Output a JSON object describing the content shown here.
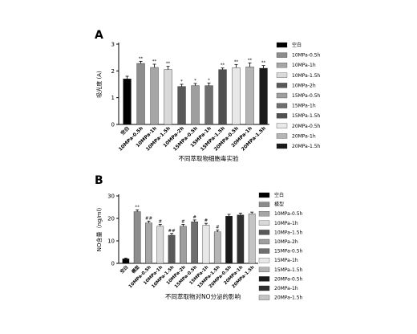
{
  "chart_data": [
    {
      "panel_label": "A",
      "type": "bar",
      "title": "不同萃取物细胞毒实验",
      "ylabel": "吸光度 (A)",
      "ylim": [
        0,
        3
      ],
      "yticks": [
        0,
        1,
        2,
        3
      ],
      "grid": false,
      "legend_position": "right",
      "categories": [
        "空白",
        "10MPa-0.5h",
        "10MPa-1h",
        "10MPa-1.5h",
        "10MPa-2h",
        "15MPa-0.5h",
        "15MPa-1h",
        "15MPa-1.5h",
        "20MPa-0.5h",
        "20MPa-1h",
        "20MPa-1.5h"
      ],
      "values": [
        1.7,
        2.28,
        2.13,
        2.05,
        1.42,
        1.45,
        1.45,
        2.05,
        2.12,
        2.15,
        2.1
      ],
      "errors": [
        0.1,
        0.08,
        0.12,
        0.12,
        0.08,
        0.08,
        0.1,
        0.06,
        0.12,
        0.15,
        0.1
      ],
      "annotations": [
        "",
        "**",
        "**",
        "**",
        "*",
        "*",
        "*",
        "**",
        "**",
        "**",
        "**"
      ],
      "series": [
        {
          "name": "空白",
          "values": [
            1.7,
            null,
            null,
            null,
            null,
            null,
            null,
            null,
            null,
            null,
            null
          ],
          "color": "#000000"
        },
        {
          "name": "10MPa-0.5h",
          "values": [
            null,
            2.28,
            null,
            null,
            null,
            null,
            null,
            null,
            null,
            null,
            null
          ],
          "color": "#8c8c8c"
        },
        {
          "name": "10MPa-1h",
          "values": [
            null,
            null,
            2.13,
            null,
            null,
            null,
            null,
            null,
            null,
            null,
            null
          ],
          "color": "#a6a6a6"
        },
        {
          "name": "10MPa-1.5h",
          "values": [
            null,
            null,
            null,
            2.05,
            null,
            null,
            null,
            null,
            null,
            null,
            null
          ],
          "color": "#d9d9d9"
        },
        {
          "name": "10MPa-2h",
          "values": [
            null,
            null,
            null,
            null,
            1.42,
            null,
            null,
            null,
            null,
            null,
            null
          ],
          "color": "#595959"
        },
        {
          "name": "15MPa-0.5h",
          "values": [
            null,
            null,
            null,
            null,
            null,
            1.45,
            null,
            null,
            null,
            null,
            null
          ],
          "color": "#9e9e9e"
        },
        {
          "name": "15MPa-1h",
          "values": [
            null,
            null,
            null,
            null,
            null,
            null,
            1.45,
            null,
            null,
            null,
            null
          ],
          "color": "#6e6e6e"
        },
        {
          "name": "15MPa-1.5h",
          "values": [
            null,
            null,
            null,
            null,
            null,
            null,
            null,
            2.05,
            null,
            null,
            null
          ],
          "color": "#505050"
        },
        {
          "name": "20MPa-0.5h",
          "values": [
            null,
            null,
            null,
            null,
            null,
            null,
            null,
            null,
            2.12,
            null,
            null
          ],
          "color": "#e8e8e8"
        },
        {
          "name": "20MPa-1h",
          "values": [
            null,
            null,
            null,
            null,
            null,
            null,
            null,
            null,
            null,
            2.15,
            null
          ],
          "color": "#b5b5b5"
        },
        {
          "name": "20MPa-1.5h",
          "values": [
            null,
            null,
            null,
            null,
            null,
            null,
            null,
            null,
            null,
            null,
            2.1
          ],
          "color": "#1a1a1a"
        }
      ]
    },
    {
      "panel_label": "B",
      "type": "bar",
      "title": "不同萃取物对NO分泌的影响",
      "ylabel": "NO含量（ng/ml)",
      "ylim": [
        0,
        30
      ],
      "yticks": [
        0,
        10,
        20,
        30
      ],
      "grid": false,
      "legend_position": "right",
      "categories": [
        "空白",
        "模型",
        "10MPa-0.5h",
        "10MPa-1h",
        "10MPa-1.5h",
        "10MPa-2h",
        "15MPa-0.5h",
        "15MPa-1h",
        "15MPa-1.5h",
        "20MPa-0.5h",
        "20MPa-1h",
        "20MPa-1.5h"
      ],
      "values": [
        2,
        23,
        18,
        16.5,
        12.5,
        16.5,
        18.5,
        17,
        14,
        21,
        21.5,
        22
      ],
      "errors": [
        0.3,
        0.8,
        0.8,
        0.8,
        0.8,
        0.8,
        0.8,
        0.8,
        0.8,
        0.8,
        0.8,
        0.8
      ],
      "annotations": [
        "",
        "**",
        "##",
        "#",
        "##",
        "#",
        "#",
        "#",
        "#",
        "",
        "",
        ""
      ],
      "series": [
        {
          "name": "空白",
          "values": [
            2,
            null,
            null,
            null,
            null,
            null,
            null,
            null,
            null,
            null,
            null,
            null
          ],
          "color": "#000000"
        },
        {
          "name": "模型",
          "values": [
            null,
            23,
            null,
            null,
            null,
            null,
            null,
            null,
            null,
            null,
            null,
            null
          ],
          "color": "#8c8c8c"
        },
        {
          "name": "10MPa-0.5h",
          "values": [
            null,
            null,
            18,
            null,
            null,
            null,
            null,
            null,
            null,
            null,
            null,
            null
          ],
          "color": "#a6a6a6"
        },
        {
          "name": "10MPa-1h",
          "values": [
            null,
            null,
            null,
            16.5,
            null,
            null,
            null,
            null,
            null,
            null,
            null,
            null
          ],
          "color": "#d9d9d9"
        },
        {
          "name": "10MPa-1.5h",
          "values": [
            null,
            null,
            null,
            null,
            12.5,
            null,
            null,
            null,
            null,
            null,
            null,
            null
          ],
          "color": "#595959"
        },
        {
          "name": "10MPa-2h",
          "values": [
            null,
            null,
            null,
            null,
            null,
            16.5,
            null,
            null,
            null,
            null,
            null,
            null
          ],
          "color": "#9e9e9e"
        },
        {
          "name": "15MPa-0.5h",
          "values": [
            null,
            null,
            null,
            null,
            null,
            null,
            18.5,
            null,
            null,
            null,
            null,
            null
          ],
          "color": "#6e6e6e"
        },
        {
          "name": "15MPa-1h",
          "values": [
            null,
            null,
            null,
            null,
            null,
            null,
            null,
            17,
            null,
            null,
            null,
            null
          ],
          "color": "#e8e8e8"
        },
        {
          "name": "15MPa-1.5h",
          "values": [
            null,
            null,
            null,
            null,
            null,
            null,
            null,
            null,
            14,
            null,
            null,
            null
          ],
          "color": "#b5b5b5"
        },
        {
          "name": "20MPa-0.5h",
          "values": [
            null,
            null,
            null,
            null,
            null,
            null,
            null,
            null,
            null,
            21,
            null,
            null
          ],
          "color": "#1a1a1a"
        },
        {
          "name": "20MPa-1h",
          "values": [
            null,
            null,
            null,
            null,
            null,
            null,
            null,
            null,
            null,
            null,
            21.5,
            null
          ],
          "color": "#303030"
        },
        {
          "name": "20MPa-1.5h",
          "values": [
            null,
            null,
            null,
            null,
            null,
            null,
            null,
            null,
            null,
            null,
            null,
            22
          ],
          "color": "#c4c4c4"
        }
      ]
    }
  ]
}
